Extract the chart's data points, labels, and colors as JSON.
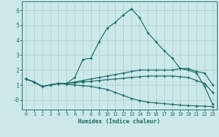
{
  "xlabel": "Humidex (Indice chaleur)",
  "bg_color": "#cce8e8",
  "grid_color": "#b0d4d4",
  "line_color": "#1a6b6b",
  "xlim": [
    -0.5,
    23.5
  ],
  "ylim": [
    -0.65,
    6.6
  ],
  "yticks": [
    0,
    1,
    2,
    3,
    4,
    5,
    6
  ],
  "ytick_labels": [
    "-0",
    "1",
    "2",
    "3",
    "4",
    "5",
    "6"
  ],
  "xticks": [
    0,
    1,
    2,
    3,
    4,
    5,
    6,
    7,
    8,
    9,
    10,
    11,
    12,
    13,
    14,
    15,
    16,
    17,
    18,
    19,
    20,
    21,
    22,
    23
  ],
  "series": [
    [
      1.4,
      1.2,
      0.9,
      1.0,
      1.1,
      1.1,
      1.5,
      2.7,
      2.8,
      3.9,
      4.8,
      5.2,
      5.7,
      6.1,
      5.5,
      4.5,
      3.9,
      3.3,
      2.8,
      2.1,
      2.0,
      1.8,
      0.9,
      -0.3
    ],
    [
      1.4,
      1.2,
      0.9,
      1.0,
      1.1,
      1.1,
      1.2,
      1.3,
      1.4,
      1.5,
      1.6,
      1.7,
      1.8,
      1.9,
      2.0,
      2.0,
      2.0,
      2.0,
      2.0,
      2.1,
      2.1,
      1.9,
      1.8,
      1.0
    ],
    [
      1.4,
      1.2,
      0.9,
      1.0,
      1.1,
      1.1,
      1.15,
      1.2,
      1.25,
      1.3,
      1.35,
      1.4,
      1.45,
      1.5,
      1.55,
      1.6,
      1.6,
      1.6,
      1.6,
      1.55,
      1.5,
      1.3,
      1.1,
      0.5
    ],
    [
      1.4,
      1.2,
      0.9,
      1.0,
      1.1,
      1.05,
      1.0,
      0.95,
      0.9,
      0.8,
      0.7,
      0.5,
      0.3,
      0.1,
      -0.05,
      -0.15,
      -0.2,
      -0.25,
      -0.3,
      -0.35,
      -0.38,
      -0.4,
      -0.42,
      -0.45
    ]
  ]
}
